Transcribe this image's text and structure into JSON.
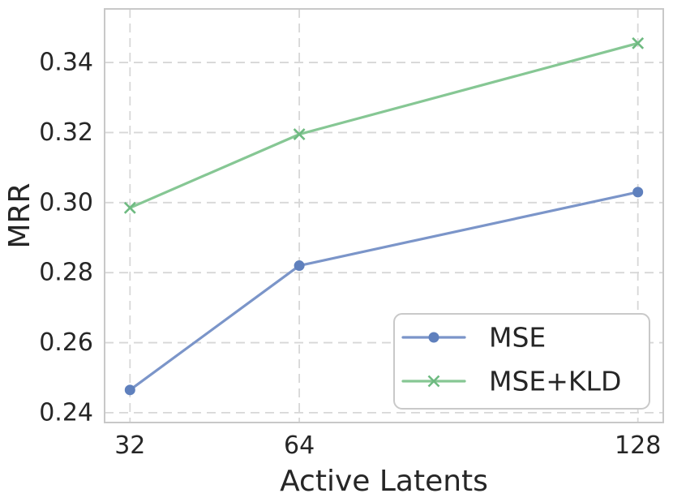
{
  "chart_data": {
    "type": "line",
    "title": "",
    "xlabel": "Active Latents",
    "ylabel": "MRR",
    "x": [
      32,
      64,
      128
    ],
    "xtick_labels": [
      "32",
      "64",
      "128"
    ],
    "yticks": [
      0.24,
      0.26,
      0.28,
      0.3,
      0.32,
      0.34
    ],
    "ytick_labels": [
      "0.24",
      "0.26",
      "0.28",
      "0.30",
      "0.32",
      "0.34"
    ],
    "xlim": [
      27.2,
      132.8
    ],
    "ylim": [
      0.2372,
      0.3553
    ],
    "grid": "dashed",
    "legend_position": "lower right",
    "series": [
      {
        "name": "MSE",
        "values": [
          0.2465,
          0.282,
          0.303
        ],
        "line_color": "#7b95c9",
        "marker_color": "#5f80bd",
        "marker": "circle"
      },
      {
        "name": "MSE+KLD",
        "values": [
          0.2985,
          0.3195,
          0.3455
        ],
        "line_color": "#86c794",
        "marker_color": "#6eba81",
        "marker": "x"
      }
    ],
    "colors": {
      "background": "#ffffff",
      "grid": "#d7d7d7",
      "spine": "#c8c8c8",
      "text": "#262626",
      "legend_border": "#c9c9c9",
      "legend_fill": "#ffffff"
    }
  }
}
